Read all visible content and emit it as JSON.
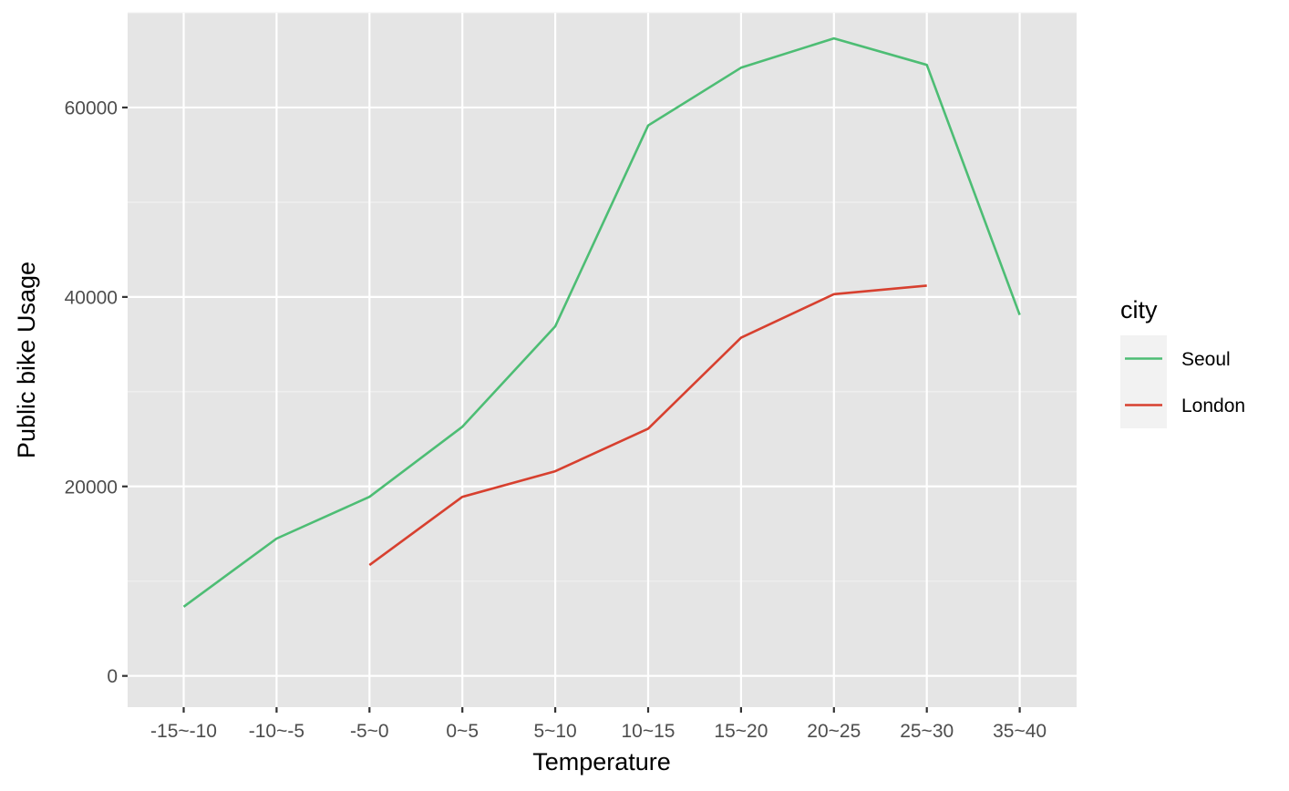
{
  "chart_data": {
    "type": "line",
    "xlabel": "Temperature",
    "ylabel": "Public bike Usage",
    "categories": [
      "-15~-10",
      "-10~-5",
      "-5~0",
      "0~5",
      "5~10",
      "10~15",
      "15~20",
      "20~25",
      "25~30",
      "35~40"
    ],
    "ylim": [
      -3300,
      70000
    ],
    "yticks": [
      0,
      20000,
      40000,
      60000
    ],
    "ytick_labels": [
      "0",
      "20000",
      "40000",
      "60000"
    ],
    "grid": true,
    "legend": {
      "title": "city",
      "position": "right"
    },
    "series": [
      {
        "name": "Seoul",
        "color": "#4dbd74",
        "values": [
          7300,
          14500,
          18900,
          26300,
          36900,
          58100,
          64200,
          67300,
          64500,
          38100
        ]
      },
      {
        "name": "London",
        "color": "#d7402f",
        "values": [
          null,
          null,
          11700,
          18900,
          21600,
          26100,
          35700,
          40300,
          41200,
          null
        ]
      }
    ]
  },
  "colors": {
    "panel_background": "#e5e5e5",
    "grid_major": "#ffffff",
    "grid_minor": "#f2f2f2",
    "tick": "#333333",
    "legend_key_background": "#f2f2f2"
  }
}
